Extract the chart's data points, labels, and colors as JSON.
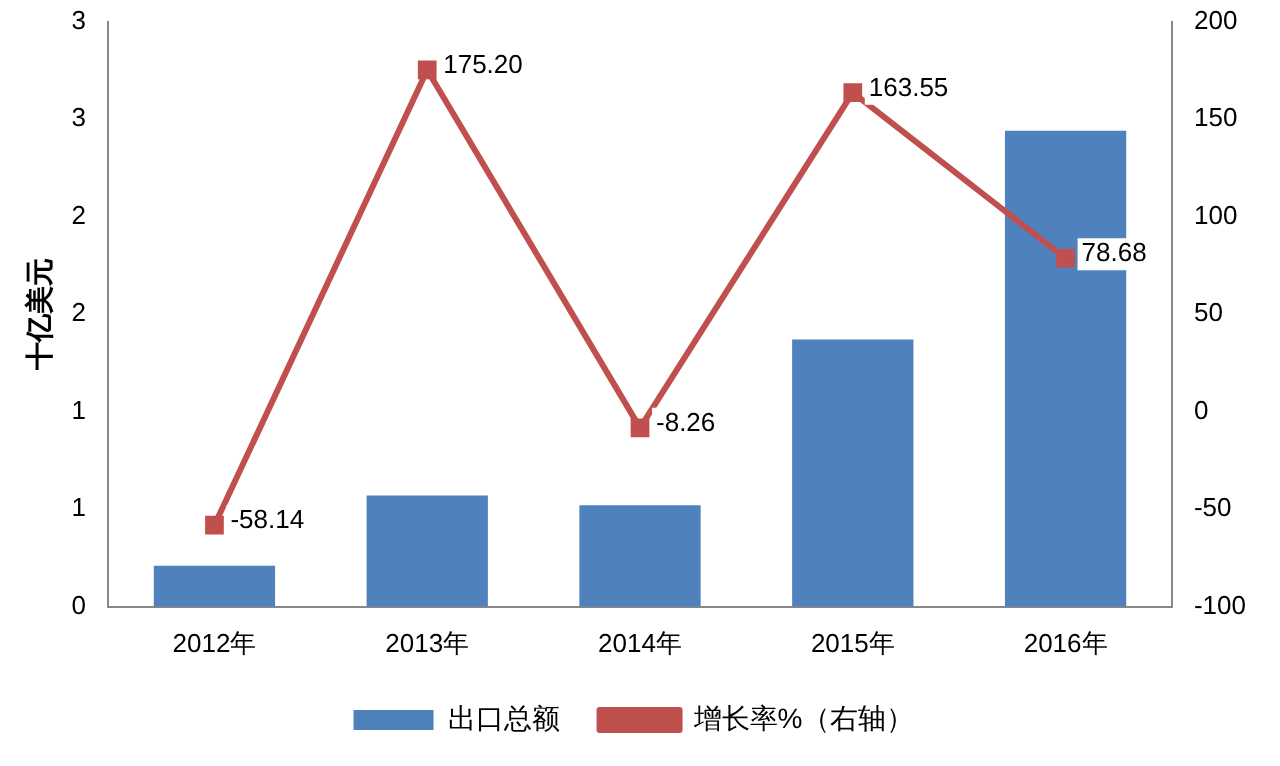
{
  "chart_data": {
    "type": "bar",
    "ylabel": "十亿美元",
    "categories": [
      "2012年",
      "2013年",
      "2014年",
      "2015年",
      "2016年"
    ],
    "series": [
      {
        "name": "出口总额",
        "color": "#4f81bd",
        "values": [
          0.21,
          0.57,
          0.52,
          1.37,
          2.44
        ]
      },
      {
        "name": "增长率%（右轴）",
        "type": "line",
        "axis": "y2",
        "color": "#c0504d",
        "marker": "square",
        "values": [
          -58.14,
          175.2,
          -8.26,
          163.55,
          78.68
        ],
        "value_labels": [
          "-58.14",
          "175.20",
          "-8.26",
          "163.55",
          "78.68"
        ]
      }
    ],
    "ylim": [
      0,
      3
    ],
    "yticks": [
      0,
      {
        "value": 0.5,
        "label": "1"
      },
      1,
      {
        "value": 1.5,
        "label": "2"
      },
      2,
      {
        "value": 2.5,
        "label": "3"
      },
      3
    ],
    "y2lim": [
      -100,
      200
    ],
    "y2ticks": [
      -100,
      -50,
      0,
      50,
      100,
      150,
      200
    ],
    "grid": false,
    "legend": "bottom"
  }
}
